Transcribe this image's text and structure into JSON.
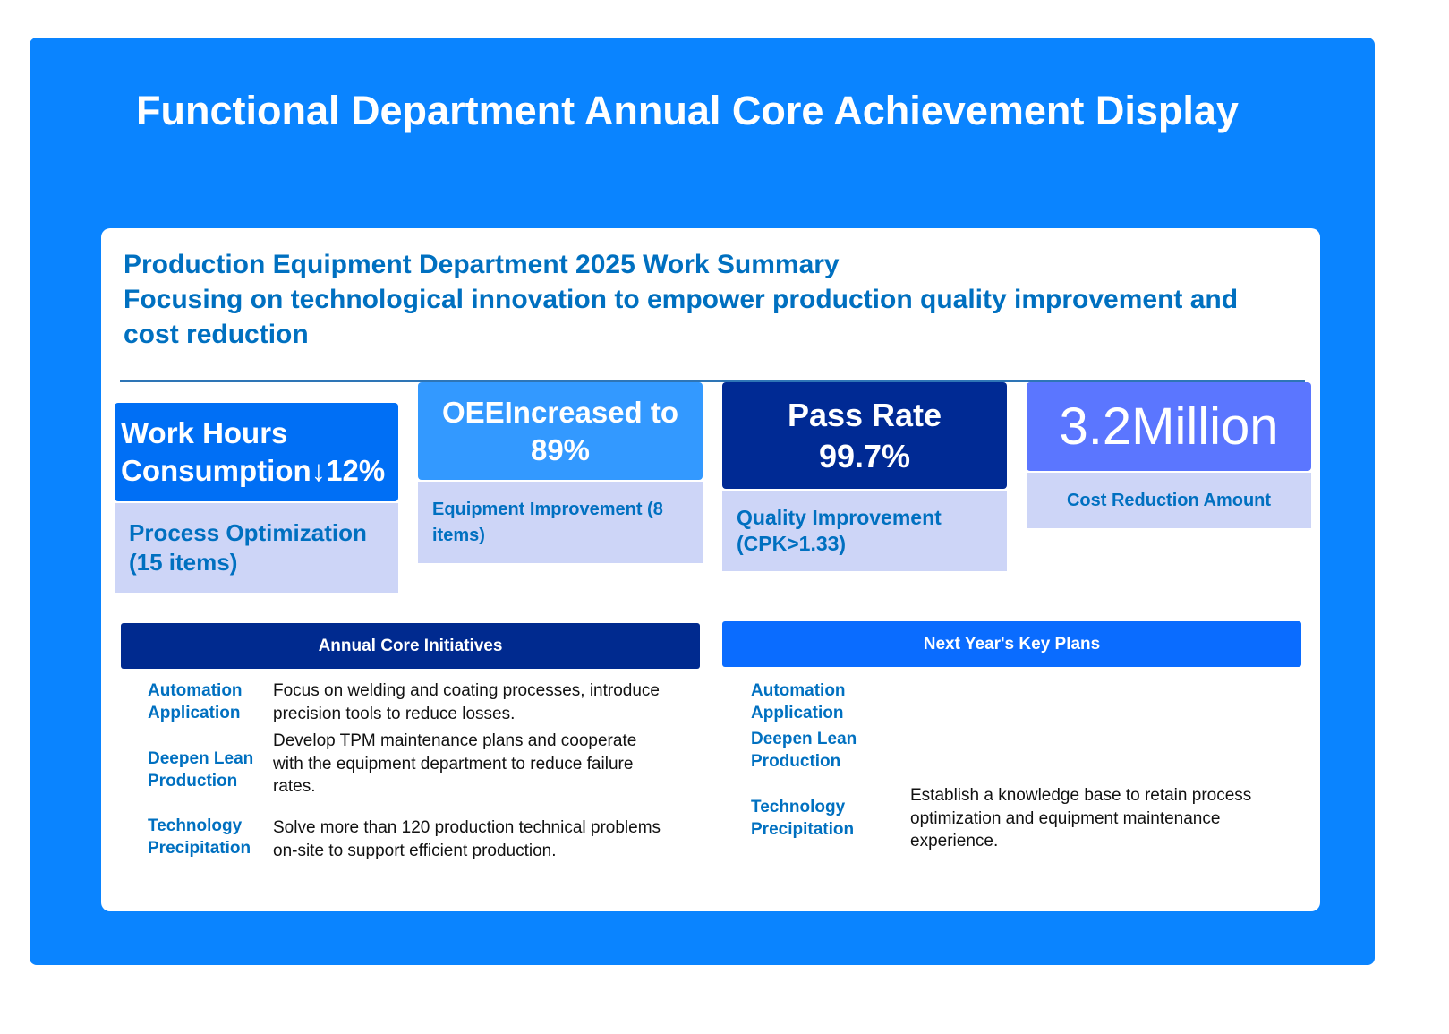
{
  "title": "Functional Department Annual Core Achievement Display",
  "summary": {
    "heading": "Production Equipment Department 2025 Work Summary",
    "subheading": "Focusing on technological innovation to empower production quality improvement and cost reduction"
  },
  "metrics": [
    {
      "value": "Work Hours Consumption↓12%",
      "label": "Process Optimization (15 items)",
      "color": "#006ff5"
    },
    {
      "value": "OEEIncreased to 89%",
      "label": "Equipment Improvement (8 items)",
      "color": "#3399ff"
    },
    {
      "value": "Pass Rate 99.7%",
      "label": "Quality Improvement (CPK>1.33)",
      "color": "#002a94"
    },
    {
      "value": "3.2Million",
      "label": "Cost Reduction Amount",
      "color": "#5b76ff"
    }
  ],
  "initiatives": {
    "title": "Annual Core Initiatives",
    "items": [
      {
        "label": "Automation Application",
        "desc": "Focus on welding and coating processes, introduce precision tools to reduce losses."
      },
      {
        "label": "Deepen Lean Production",
        "desc": "Develop TPM maintenance plans and cooperate with the equipment department to reduce failure rates."
      },
      {
        "label": "Technology Precipitation",
        "desc": "Solve more than 120 production technical problems on-site to support efficient production."
      }
    ]
  },
  "plans": {
    "title": "Next Year's Key Plans",
    "items": [
      {
        "label": "Automation Application",
        "desc": ""
      },
      {
        "label": "Deepen Lean Production",
        "desc": ""
      },
      {
        "label": "Technology Precipitation",
        "desc": "Establish a knowledge base to retain process optimization and equipment maintenance experience."
      }
    ]
  }
}
